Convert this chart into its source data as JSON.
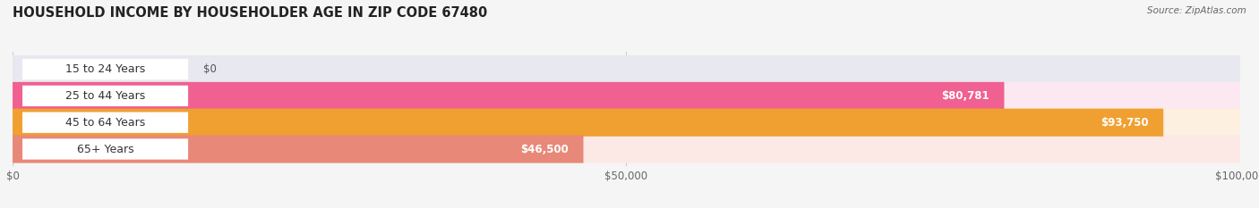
{
  "title": "HOUSEHOLD INCOME BY HOUSEHOLDER AGE IN ZIP CODE 67480",
  "source": "Source: ZipAtlas.com",
  "categories": [
    "15 to 24 Years",
    "25 to 44 Years",
    "45 to 64 Years",
    "65+ Years"
  ],
  "values": [
    0,
    80781,
    93750,
    46500
  ],
  "value_labels": [
    "$0",
    "$80,781",
    "$93,750",
    "$46,500"
  ],
  "bar_colors": [
    "#9999cc",
    "#f06090",
    "#f0a030",
    "#e88878"
  ],
  "bar_bg_colors": [
    "#e8e8f0",
    "#fce8f0",
    "#fdf0e0",
    "#fce8e4"
  ],
  "xlim": [
    0,
    100000
  ],
  "xtick_values": [
    0,
    50000,
    100000
  ],
  "xtick_labels": [
    "$0",
    "$50,000",
    "$100,000"
  ],
  "background_color": "#f5f5f5",
  "bar_height": 0.55,
  "title_fontsize": 10.5,
  "label_fontsize": 9,
  "value_fontsize": 8.5
}
